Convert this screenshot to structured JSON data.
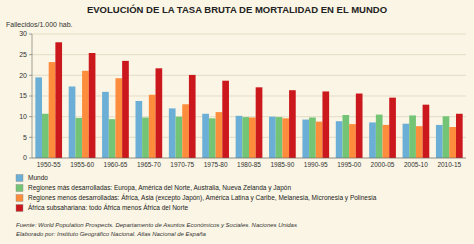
{
  "chart_data": {
    "type": "bar",
    "title": "EVOLUCIÓN DE LA TASA BRUTA DE MORTALIDAD EN EL MUNDO",
    "ylabel": "Fallecidos/1.000 hab.",
    "categories": [
      "1950-55",
      "1955-60",
      "1960-65",
      "1965-70",
      "1970-75",
      "1975-80",
      "1980-85",
      "1985-90",
      "1990-95",
      "1995-00",
      "2000-05",
      "2005-10",
      "2010-15"
    ],
    "series": [
      {
        "name": "Mundo",
        "color": "#6baed6",
        "values": [
          19.5,
          17.3,
          16.0,
          13.8,
          12.0,
          10.7,
          10.2,
          10.0,
          9.3,
          8.9,
          8.6,
          8.3,
          8.0
        ]
      },
      {
        "name": "Regiones más desarrolladas: Europa, América del Norte, Australia, Nueva Zelanda y Japón",
        "color": "#74c476",
        "values": [
          10.7,
          9.7,
          9.4,
          9.8,
          10.0,
          9.6,
          9.9,
          9.9,
          9.8,
          10.4,
          10.5,
          10.3,
          10.1
        ]
      },
      {
        "name": "Regiones menos desarrolladas: África, Asia (excepto Japón), América Latina y Caribe, Melanesia, Micronesia y Polinesia",
        "color": "#fd8d3c",
        "values": [
          23.2,
          21.1,
          19.3,
          15.3,
          13.0,
          11.1,
          9.8,
          9.6,
          8.8,
          8.2,
          8.0,
          7.7,
          7.5
        ]
      },
      {
        "name": "África subsahariana: todo África menos África del Norte",
        "color": "#cb181d",
        "values": [
          28.0,
          25.4,
          23.5,
          21.7,
          20.1,
          18.7,
          17.1,
          16.4,
          16.1,
          15.6,
          14.6,
          12.9,
          10.7
        ]
      }
    ],
    "ylim": [
      0,
      30
    ],
    "yticks": [
      0,
      5,
      10,
      15,
      20,
      25,
      30
    ],
    "grid": true,
    "legend": "bottom",
    "annotations": [
      "Fuente: World Population Prospects. Departamento de Asuntos Económicos y Sociales. Naciones Unidas",
      "Elaborado por: Instituto Geográfico Nacional. Atlas Nacional de España"
    ]
  }
}
